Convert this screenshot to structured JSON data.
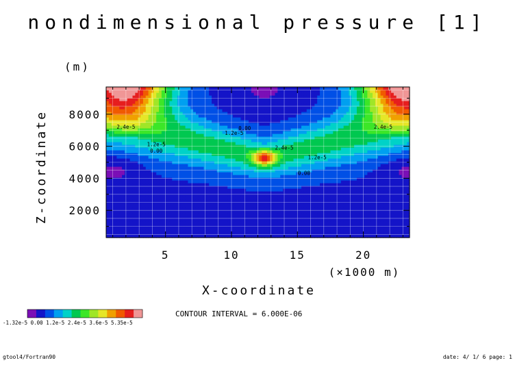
{
  "chart_data": {
    "type": "heatmap",
    "title": "nondimensional pressure [1]",
    "xlabel": "X-coordinate",
    "x_unit": "(×1000 m)",
    "ylabel": "Z-coordinate",
    "y_unit": "(m)",
    "xlim": [
      0.5,
      23.5
    ],
    "ylim": [
      300,
      9700
    ],
    "x_ticks": [
      5,
      10,
      15,
      20
    ],
    "x_tick_labels": [
      "5",
      "10",
      "15",
      "20"
    ],
    "y_ticks": [
      2000,
      4000,
      6000,
      8000
    ],
    "y_tick_labels": [
      "2000",
      "4000",
      "6000",
      "8000"
    ],
    "grid": true,
    "contour_interval_text": "CONTOUR INTERVAL = 6.000E-06",
    "contour_labels": [
      {
        "text": "2.4e-5",
        "x": 2.0,
        "y": 7100
      },
      {
        "text": "2.4e-5",
        "x": 21.5,
        "y": 7100
      },
      {
        "text": "0.00",
        "x": 11.0,
        "y": 7000
      },
      {
        "text": "1.2e-5",
        "x": 10.2,
        "y": 6700
      },
      {
        "text": "1.2e-5",
        "x": 4.3,
        "y": 6000
      },
      {
        "text": "0.00",
        "x": 4.3,
        "y": 5600
      },
      {
        "text": "2.4e-5",
        "x": 14.0,
        "y": 5800
      },
      {
        "text": "1.2e-5",
        "x": 16.5,
        "y": 5200
      },
      {
        "text": "0.00",
        "x": 15.5,
        "y": 4200
      }
    ],
    "colorbar": {
      "colors": [
        "#7b0fb6",
        "#1414c8",
        "#0050e6",
        "#00a0f0",
        "#00d2c8",
        "#00c850",
        "#3ce628",
        "#a0e628",
        "#e6e628",
        "#f0a000",
        "#f05a00",
        "#e61e1e",
        "#f09696"
      ],
      "tick_labels_text": "-1.32e-5 0.00 1.2e-5 2.4e-5 3.6e-5 5.35e-5"
    },
    "field_params": {
      "bg": -7e-06,
      "centers": [
        2.0,
        23.0
      ],
      "top_z": 9700,
      "side_width": 3.2,
      "v_center_y": 5250,
      "v_slope": 200,
      "v_width": 850,
      "v_amp": 2.2e-05,
      "peak_x": 12.5,
      "peak_y": 5300,
      "peak_amp": 3.7e-05,
      "cold_amp": 9e-06
    }
  },
  "footer": {
    "left": "gtool4/Fortran90",
    "right": "date: 4/ 1/ 6 page: 1"
  }
}
